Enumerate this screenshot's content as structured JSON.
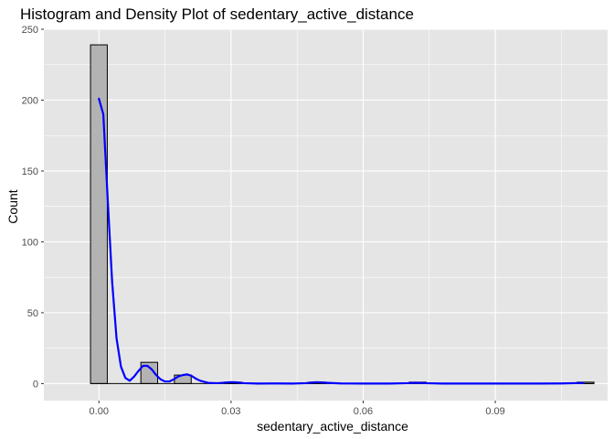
{
  "chart_data": {
    "type": "histogram",
    "title": "Histogram and Density Plot of sedentary_active_distance",
    "xlabel": "sedentary_active_distance",
    "ylabel": "Count",
    "xlim": [
      -0.0125,
      0.1155
    ],
    "ylim": [
      -12,
      250
    ],
    "x_ticks": [
      {
        "value": 0.0,
        "label": "0.00"
      },
      {
        "value": 0.03,
        "label": "0.03"
      },
      {
        "value": 0.06,
        "label": "0.06"
      },
      {
        "value": 0.09,
        "label": "0.09"
      }
    ],
    "y_ticks": [
      {
        "value": 0,
        "label": "0"
      },
      {
        "value": 50,
        "label": "50"
      },
      {
        "value": 100,
        "label": "100"
      },
      {
        "value": 150,
        "label": "150"
      },
      {
        "value": 200,
        "label": "200"
      },
      {
        "value": 250,
        "label": "250"
      }
    ],
    "bin_width": 0.00381,
    "bins": [
      {
        "x": 0.0,
        "count": 239
      },
      {
        "x": 0.01143,
        "count": 15
      },
      {
        "x": 0.01905,
        "count": 6
      },
      {
        "x": 0.03048,
        "count": 1
      },
      {
        "x": 0.04953,
        "count": 1
      },
      {
        "x": 0.07239,
        "count": 1
      },
      {
        "x": 0.1105,
        "count": 1
      }
    ],
    "bins_range": [
      -0.0019,
      0.1124
    ],
    "density_curve": {
      "color": "#0000ff",
      "points": [
        [
          0.0,
          201
        ],
        [
          0.001,
          190
        ],
        [
          0.002,
          130
        ],
        [
          0.003,
          72
        ],
        [
          0.004,
          32
        ],
        [
          0.005,
          12
        ],
        [
          0.006,
          4
        ],
        [
          0.007,
          2
        ],
        [
          0.008,
          5
        ],
        [
          0.009,
          9
        ],
        [
          0.01,
          12.5
        ],
        [
          0.011,
          12.5
        ],
        [
          0.012,
          10
        ],
        [
          0.013,
          6
        ],
        [
          0.014,
          3
        ],
        [
          0.015,
          1.5
        ],
        [
          0.016,
          1.5
        ],
        [
          0.017,
          3
        ],
        [
          0.018,
          5
        ],
        [
          0.019,
          6
        ],
        [
          0.02,
          6.5
        ],
        [
          0.021,
          5.5
        ],
        [
          0.022,
          3.5
        ],
        [
          0.023,
          2
        ],
        [
          0.025,
          0.4
        ],
        [
          0.027,
          0.3
        ],
        [
          0.029,
          0.8
        ],
        [
          0.03,
          1
        ],
        [
          0.031,
          0.9
        ],
        [
          0.033,
          0.3
        ],
        [
          0.036,
          0
        ],
        [
          0.04,
          0.1
        ],
        [
          0.044,
          0
        ],
        [
          0.047,
          0.3
        ],
        [
          0.049,
          0.9
        ],
        [
          0.05,
          0.9
        ],
        [
          0.052,
          0.5
        ],
        [
          0.055,
          0.1
        ],
        [
          0.06,
          0
        ],
        [
          0.066,
          0
        ],
        [
          0.07,
          0.3
        ],
        [
          0.072,
          0.6
        ],
        [
          0.074,
          0.3
        ],
        [
          0.078,
          0
        ],
        [
          0.085,
          0
        ],
        [
          0.095,
          0
        ],
        [
          0.1,
          0
        ],
        [
          0.105,
          0.1
        ],
        [
          0.108,
          0.3
        ],
        [
          0.11,
          0.4
        ]
      ]
    },
    "colors": {
      "panel_background": "#e5e5e5",
      "grid": "#ffffff",
      "bar_fill": "#b3b3b3",
      "bar_stroke": "#000000"
    },
    "grid": true,
    "legend": "none"
  }
}
